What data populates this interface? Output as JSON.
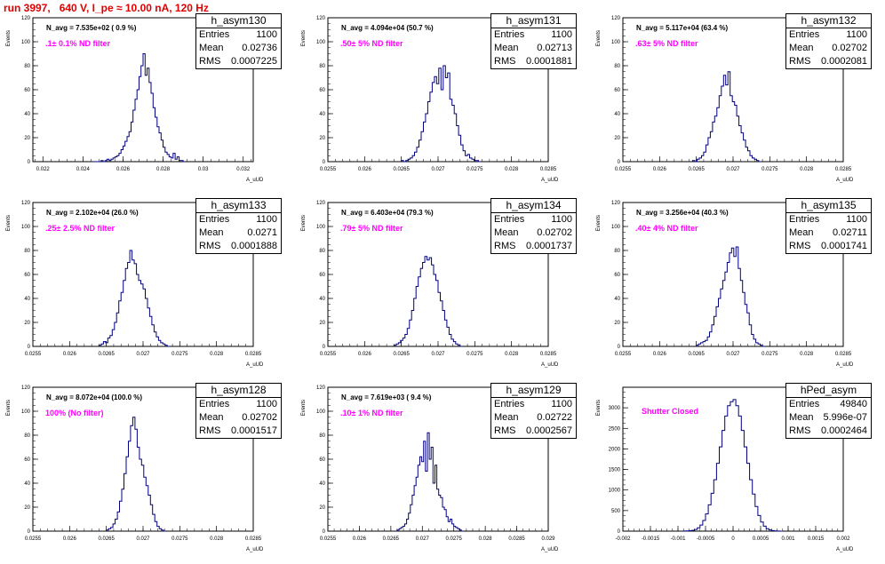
{
  "header": {
    "title": "run 3997,   640 V, I_pe ≈ 10.00 nA, 120 Hz"
  },
  "axis_labels": {
    "x": "A_uUD",
    "y": "Events"
  },
  "chart_data": [
    {
      "type": "histogram",
      "name": "h_asym130",
      "n_avg": "N_avg = 7.535e+02 ( 0.9 %)",
      "filter_label": ".1± 0.1% ND filter",
      "stats": {
        "entries": "1100",
        "mean": "0.02736",
        "rms": "0.0007225"
      },
      "xlim": [
        0.0215,
        0.0325
      ],
      "ylim": [
        0,
        120
      ],
      "xticks": [
        "0.022",
        "0.024",
        "0.026",
        "0.028",
        "0.03",
        "0.032"
      ],
      "yticks": [
        "0",
        "20",
        "40",
        "60",
        "80",
        "100",
        "120"
      ],
      "bins_x0": 0.0245,
      "bin_width": 0.0001,
      "counts": [
        0,
        0,
        0,
        0,
        1,
        0,
        1,
        2,
        1,
        2,
        3,
        4,
        5,
        7,
        10,
        13,
        17,
        21,
        25,
        33,
        43,
        52,
        60,
        71,
        80,
        90,
        72,
        78,
        66,
        57,
        45,
        37,
        29,
        24,
        18,
        12,
        8,
        6,
        4,
        3,
        7,
        2,
        4,
        1,
        1,
        0
      ]
    },
    {
      "type": "histogram",
      "name": "h_asym131",
      "n_avg": "N_avg = 4.094e+04 (50.7 %)",
      "filter_label": ".50± 5% ND filter",
      "stats": {
        "entries": "1100",
        "mean": "0.02713",
        "rms": "0.0001881"
      },
      "xlim": [
        0.0255,
        0.0285
      ],
      "ylim": [
        0,
        120
      ],
      "xticks": [
        "0.0255",
        "0.026",
        "0.0265",
        "0.027",
        "0.0275",
        "0.028",
        "0.0285"
      ],
      "yticks": [
        "0",
        "20",
        "40",
        "60",
        "80",
        "100",
        "120"
      ],
      "bins_x0": 0.0265,
      "bin_width": 3e-05,
      "counts": [
        1,
        0,
        1,
        2,
        3,
        5,
        8,
        12,
        18,
        25,
        33,
        40,
        50,
        58,
        66,
        71,
        65,
        78,
        60,
        80,
        70,
        74,
        52,
        47,
        40,
        30,
        22,
        14,
        9,
        5,
        6,
        3,
        2,
        1,
        1,
        0
      ]
    },
    {
      "type": "histogram",
      "name": "h_asym132",
      "n_avg": "N_avg = 5.117e+04 (63.4 %)",
      "filter_label": ".63± 5% ND filter",
      "stats": {
        "entries": "1100",
        "mean": "0.02702",
        "rms": "0.0002081"
      },
      "xlim": [
        0.0255,
        0.0285
      ],
      "ylim": [
        0,
        120
      ],
      "xticks": [
        "0.0255",
        "0.026",
        "0.0265",
        "0.027",
        "0.0275",
        "0.028",
        "0.0285"
      ],
      "yticks": [
        "0",
        "20",
        "40",
        "60",
        "80",
        "100",
        "120"
      ],
      "bins_x0": 0.02645,
      "bin_width": 3e-05,
      "counts": [
        1,
        0,
        2,
        3,
        5,
        8,
        14,
        20,
        25,
        33,
        38,
        45,
        55,
        63,
        72,
        64,
        75,
        55,
        50,
        47,
        38,
        30,
        24,
        18,
        12,
        9,
        5,
        3,
        2,
        1,
        0
      ]
    },
    {
      "type": "histogram",
      "name": "h_asym133",
      "n_avg": "N_avg = 2.102e+04 (26.0 %)",
      "filter_label": ".25± 2.5% ND filter",
      "stats": {
        "entries": "1100",
        "mean": "0.0271",
        "rms": "0.0001888"
      },
      "xlim": [
        0.0255,
        0.0285
      ],
      "ylim": [
        0,
        120
      ],
      "xticks": [
        "0.0255",
        "0.026",
        "0.0265",
        "0.027",
        "0.0275",
        "0.028",
        "0.0285"
      ],
      "yticks": [
        "0",
        "20",
        "40",
        "60",
        "80",
        "100",
        "120"
      ],
      "bins_x0": 0.0264,
      "bin_width": 3e-05,
      "counts": [
        1,
        2,
        4,
        3,
        7,
        9,
        14,
        20,
        28,
        38,
        45,
        55,
        65,
        70,
        80,
        72,
        69,
        60,
        55,
        52,
        48,
        40,
        32,
        25,
        18,
        12,
        8,
        5,
        3,
        2,
        1,
        0
      ]
    },
    {
      "type": "histogram",
      "name": "h_asym134",
      "n_avg": "N_avg = 6.403e+04 (79.3 %)",
      "filter_label": ".79± 5% ND filter",
      "stats": {
        "entries": "1100",
        "mean": "0.02702",
        "rms": "0.0001737"
      },
      "xlim": [
        0.0255,
        0.0285
      ],
      "ylim": [
        0,
        120
      ],
      "xticks": [
        "0.0255",
        "0.026",
        "0.0265",
        "0.027",
        "0.0275",
        "0.028",
        "0.0285"
      ],
      "yticks": [
        "0",
        "20",
        "40",
        "60",
        "80",
        "100",
        "120"
      ],
      "bins_x0": 0.0264,
      "bin_width": 3e-05,
      "counts": [
        1,
        2,
        3,
        5,
        7,
        10,
        15,
        22,
        30,
        40,
        50,
        58,
        65,
        70,
        75,
        72,
        74,
        68,
        60,
        55,
        45,
        38,
        30,
        22,
        16,
        10,
        6,
        4,
        2,
        1,
        0
      ]
    },
    {
      "type": "histogram",
      "name": "h_asym135",
      "n_avg": "N_avg = 3.256e+04 (40.3 %)",
      "filter_label": ".40± 4% ND filter",
      "stats": {
        "entries": "1100",
        "mean": "0.02711",
        "rms": "0.0001741"
      },
      "xlim": [
        0.0255,
        0.0285
      ],
      "ylim": [
        0,
        120
      ],
      "xticks": [
        "0.0255",
        "0.026",
        "0.0265",
        "0.027",
        "0.0275",
        "0.028",
        "0.0285"
      ],
      "yticks": [
        "0",
        "20",
        "40",
        "60",
        "80",
        "100",
        "120"
      ],
      "bins_x0": 0.0265,
      "bin_width": 3e-05,
      "counts": [
        1,
        2,
        3,
        4,
        5,
        8,
        12,
        18,
        25,
        33,
        40,
        48,
        55,
        62,
        70,
        78,
        82,
        75,
        83,
        65,
        55,
        45,
        35,
        28,
        18,
        10,
        6,
        3,
        2,
        1,
        0
      ]
    },
    {
      "type": "histogram",
      "name": "h_asym128",
      "n_avg": "N_avg = 8.072e+04 (100.0 %)",
      "filter_label": "100% (No filter)",
      "stats": {
        "entries": "1100",
        "mean": "0.02702",
        "rms": "0.0001517"
      },
      "xlim": [
        0.0255,
        0.0285
      ],
      "ylim": [
        0,
        120
      ],
      "xticks": [
        "0.0255",
        "0.026",
        "0.0265",
        "0.027",
        "0.0275",
        "0.028",
        "0.0285"
      ],
      "yticks": [
        "0",
        "20",
        "40",
        "60",
        "80",
        "100",
        "120"
      ],
      "bins_x0": 0.0265,
      "bin_width": 3e-05,
      "counts": [
        1,
        2,
        3,
        6,
        10,
        16,
        25,
        35,
        48,
        62,
        75,
        88,
        95,
        85,
        70,
        60,
        55,
        45,
        38,
        30,
        22,
        14,
        8,
        4,
        2,
        1,
        0
      ]
    },
    {
      "type": "histogram",
      "name": "h_asym129",
      "n_avg": "N_avg = 7.619e+03 ( 9.4 %)",
      "filter_label": ".10± 1% ND filter",
      "stats": {
        "entries": "1100",
        "mean": "0.02722",
        "rms": "0.0002567"
      },
      "xlim": [
        0.0255,
        0.029
      ],
      "ylim": [
        0,
        120
      ],
      "xticks": [
        "0.0255",
        "0.026",
        "0.0265",
        "0.027",
        "0.0275",
        "0.028",
        "0.0285",
        "0.029"
      ],
      "yticks": [
        "0",
        "20",
        "40",
        "60",
        "80",
        "100",
        "120"
      ],
      "bins_x0": 0.0266,
      "bin_width": 3e-05,
      "counts": [
        1,
        2,
        3,
        4,
        6,
        10,
        15,
        22,
        30,
        38,
        45,
        55,
        62,
        58,
        75,
        50,
        82,
        60,
        70,
        40,
        55,
        35,
        30,
        28,
        20,
        18,
        12,
        8,
        10,
        6,
        4,
        3,
        2,
        1,
        0
      ]
    },
    {
      "type": "histogram",
      "name": "hPed_asym",
      "n_avg": "",
      "filter_label": "Shutter Closed",
      "stats": {
        "entries": "49840",
        "mean": "5.996e-07",
        "rms": "0.0002464"
      },
      "xlim": [
        -0.002,
        0.002
      ],
      "ylim": [
        0,
        3500
      ],
      "xticks": [
        "-0.002",
        "-0.0015",
        "-0.001",
        "-0.0005",
        "0",
        "0.0005",
        "0.001",
        "0.0015",
        "0.002"
      ],
      "yticks": [
        "0",
        "500",
        "1000",
        "1500",
        "2000",
        "2500",
        "3000"
      ],
      "bins_x0": -0.0009,
      "bin_width": 5e-05,
      "counts": [
        2,
        5,
        10,
        20,
        40,
        80,
        150,
        260,
        420,
        640,
        920,
        1250,
        1650,
        2050,
        2450,
        2800,
        3050,
        3150,
        3200,
        3050,
        2800,
        2450,
        2050,
        1650,
        1250,
        900,
        600,
        380,
        220,
        120,
        60,
        30,
        14,
        6,
        2,
        0
      ]
    }
  ]
}
